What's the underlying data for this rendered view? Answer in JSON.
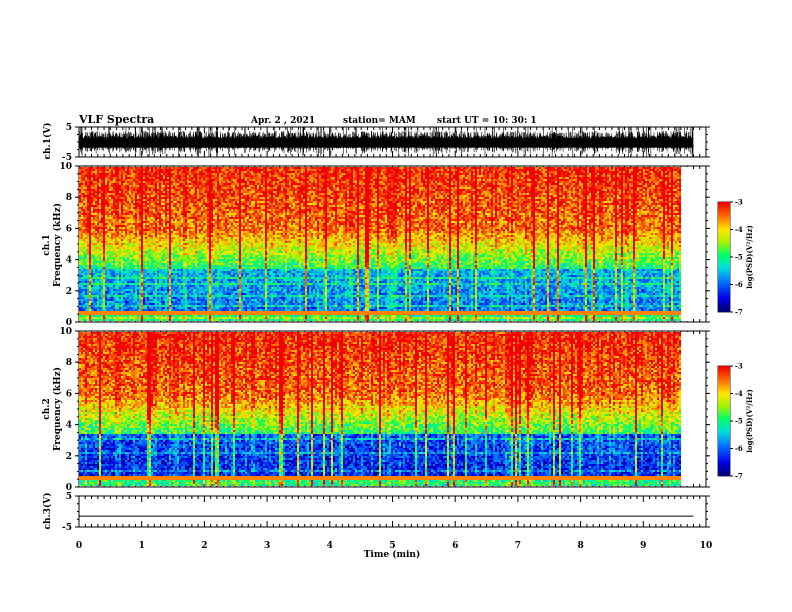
{
  "header": {
    "title": "VLF Spectra",
    "date": "Apr. 2 , 2021",
    "station": "station= MAM",
    "start": "start UT = 10: 30: 1"
  },
  "colors": {
    "low": "#00007f",
    "mid": "#00ff7f",
    "high": "#ff1a00"
  },
  "chart_data": [
    {
      "type": "line",
      "name": "waveform-ch1",
      "ylabel": "ch.1(V)",
      "yticks": [
        "5",
        "-5"
      ],
      "ylim": [
        -5,
        5
      ],
      "xlim": [
        0,
        10
      ]
    },
    {
      "type": "heatmap",
      "name": "spectrogram-ch1",
      "ylabel_channel": "ch.1",
      "ylabel": "Frequency (kHz)",
      "yticks": [
        "0",
        "2",
        "4",
        "6",
        "8",
        "10"
      ],
      "ylim": [
        0,
        10
      ],
      "xlim": [
        0,
        10
      ],
      "colorbar": {
        "label": "log(PSD)(V²/Hz)",
        "ticks": [
          "-3",
          "-4",
          "-5",
          "-6",
          "-7"
        ],
        "range": [
          -7,
          -3
        ]
      }
    },
    {
      "type": "heatmap",
      "name": "spectrogram-ch2",
      "ylabel_channel": "ch.2",
      "ylabel": "Frequency (kHz)",
      "yticks": [
        "0",
        "2",
        "4",
        "6",
        "8",
        "10"
      ],
      "ylim": [
        0,
        10
      ],
      "xlim": [
        0,
        10
      ],
      "colorbar": {
        "label": "log(PSD)(V²/Hz)",
        "ticks": [
          "-3",
          "-4",
          "-5",
          "-6",
          "-7"
        ],
        "range": [
          -7,
          -3
        ]
      }
    },
    {
      "type": "line",
      "name": "waveform-ch3",
      "ylabel": "ch.3(V)",
      "yticks": [
        "5",
        "-5"
      ],
      "ylim": [
        -5,
        5
      ],
      "xlim": [
        0,
        10
      ],
      "x": [
        0,
        9.8
      ],
      "y": [
        -1.5,
        -1.5
      ]
    }
  ],
  "xaxis": {
    "label": "Time (min)",
    "ticks": [
      "0",
      "1",
      "2",
      "3",
      "4",
      "5",
      "6",
      "7",
      "8",
      "9",
      "10"
    ],
    "xlim": [
      0,
      10
    ],
    "data_end": 9.8
  }
}
